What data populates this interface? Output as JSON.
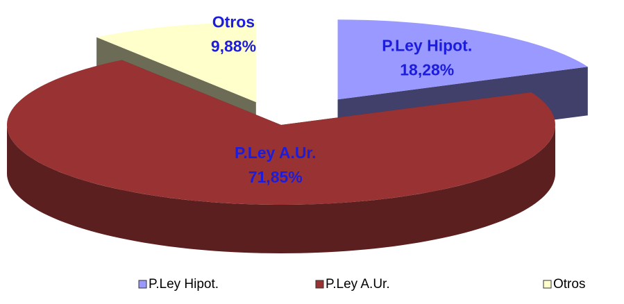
{
  "chart_data": {
    "type": "pie3d",
    "categories": [
      "P.Ley Hipot.",
      "P.Ley A.Ur.",
      "Otros"
    ],
    "values": [
      18.28,
      71.85,
      9.88
    ],
    "value_labels": [
      "18,28%",
      "71,85%",
      "9,88%"
    ],
    "colors": [
      "#9999ff",
      "#993333",
      "#ffffcc"
    ],
    "legend": "bottom"
  }
}
